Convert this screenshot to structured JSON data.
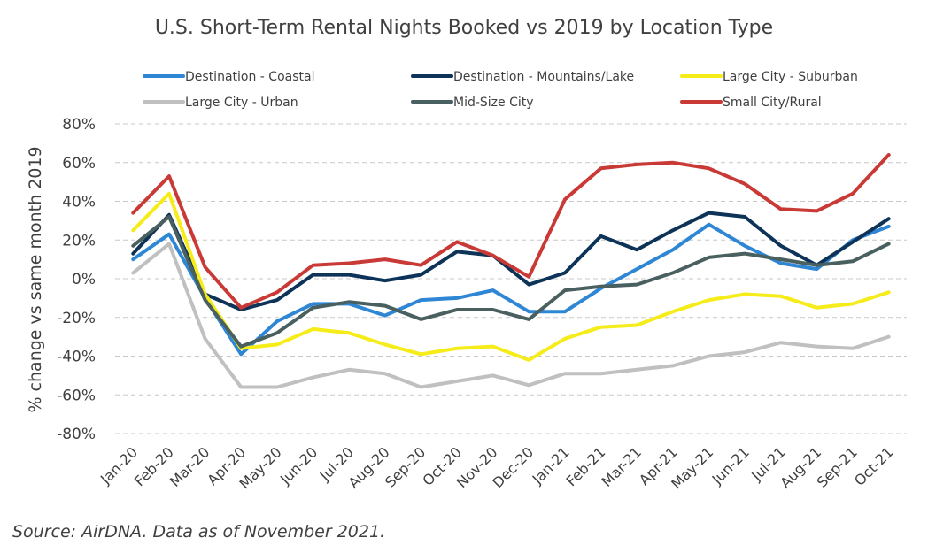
{
  "chart_data": {
    "type": "line",
    "title": "U.S. Short-Term Rental Nights Booked vs 2019 by Location Type",
    "ylabel": "% change vs same month 2019",
    "xlabel": "",
    "ylim": [
      -80,
      80
    ],
    "y_ticks": [
      "80%",
      "60%",
      "40%",
      "20%",
      "0%",
      "-20%",
      "-40%",
      "-60%",
      "-80%"
    ],
    "y_tick_values": [
      80,
      60,
      40,
      20,
      0,
      -20,
      -40,
      -60,
      -80
    ],
    "grid": "horizontal dashed",
    "legend_position": "top",
    "categories": [
      "Jan-20",
      "Feb-20",
      "Mar-20",
      "Apr-20",
      "May-20",
      "Jun-20",
      "Jul-20",
      "Aug-20",
      "Sep-20",
      "Oct-20",
      "Nov-20",
      "Dec-20",
      "Jan-21",
      "Feb-21",
      "Mar-21",
      "Apr-21",
      "May-21",
      "Jun-21",
      "Jul-21",
      "Aug-21",
      "Sep-21",
      "Oct-21"
    ],
    "series": [
      {
        "name": "Destination - Coastal",
        "color": "#2e86d4",
        "values": [
          10,
          23,
          -10,
          -39,
          -22,
          -13,
          -13,
          -19,
          -11,
          -10,
          -6,
          -17,
          -17,
          -5,
          5,
          15,
          28,
          17,
          8,
          5,
          20,
          27
        ]
      },
      {
        "name": "Destination - Mountains/Lake",
        "color": "#0d3358",
        "values": [
          13,
          33,
          -8,
          -16,
          -11,
          2,
          2,
          -1,
          2,
          14,
          12,
          -3,
          3,
          22,
          15,
          25,
          34,
          32,
          17,
          7,
          19,
          31
        ]
      },
      {
        "name": "Large City - Suburban",
        "color": "#f5ec19",
        "values": [
          25,
          44,
          -8,
          -36,
          -34,
          -26,
          -28,
          -34,
          -39,
          -36,
          -35,
          -42,
          -31,
          -25,
          -24,
          -17,
          -11,
          -8,
          -9,
          -15,
          -13,
          -7
        ]
      },
      {
        "name": "Large City - Urban",
        "color": "#c0c0c0",
        "values": [
          3,
          18,
          -31,
          -56,
          -56,
          -51,
          -47,
          -49,
          -56,
          -53,
          -50,
          -55,
          -49,
          -49,
          -47,
          -45,
          -40,
          -38,
          -33,
          -35,
          -36,
          -30
        ]
      },
      {
        "name": "Mid-Size City",
        "color": "#4a6060",
        "values": [
          17,
          32,
          -11,
          -35,
          -28,
          -15,
          -12,
          -14,
          -21,
          -16,
          -16,
          -21,
          -6,
          -4,
          -3,
          3,
          11,
          13,
          10,
          7,
          9,
          18
        ]
      },
      {
        "name": "Small City/Rural",
        "color": "#c93a36",
        "values": [
          34,
          53,
          6,
          -15,
          -7,
          7,
          8,
          10,
          7,
          19,
          12,
          1,
          41,
          57,
          59,
          60,
          57,
          49,
          36,
          35,
          44,
          64
        ]
      }
    ],
    "source": "Source: AirDNA. Data as of November 2021."
  }
}
